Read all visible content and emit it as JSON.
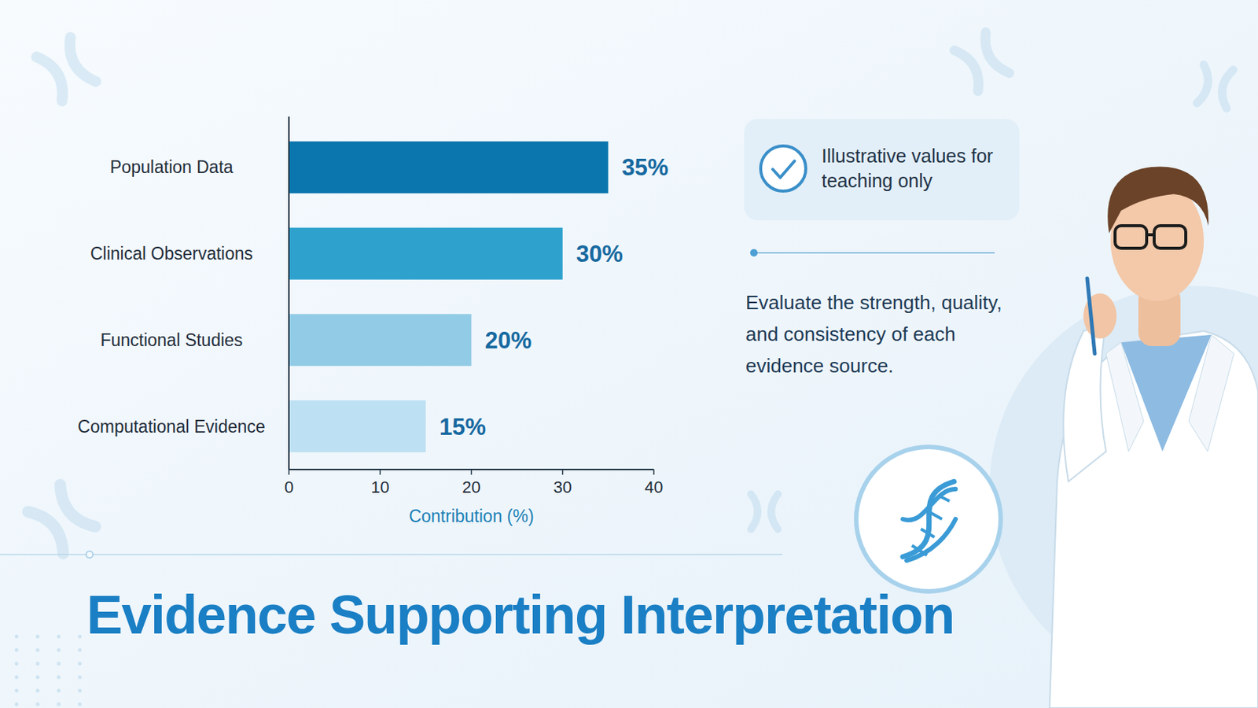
{
  "chart_data": {
    "type": "bar",
    "orientation": "horizontal",
    "title": "Evidence Supporting Interpretation",
    "x_label": "Contribution (%)",
    "categories": [
      "Population Data",
      "Clinical Observations",
      "Functional Studies",
      "Computational Evidence"
    ],
    "values": [
      35,
      30,
      20,
      15
    ],
    "value_labels": [
      "35%",
      "30%",
      "20%",
      "15%"
    ],
    "colors": [
      "#0a76ad",
      "#2ea1cd",
      "#92cbe5",
      "#bde0f2"
    ],
    "xlim": [
      0,
      40
    ],
    "xticks": [
      0,
      10,
      20,
      30,
      40
    ],
    "grid": false,
    "data_labels": true,
    "annotations": [
      "Illustrative values for teaching only",
      "Evaluate the strength, quality, and consistency of each evidence source."
    ]
  }
}
